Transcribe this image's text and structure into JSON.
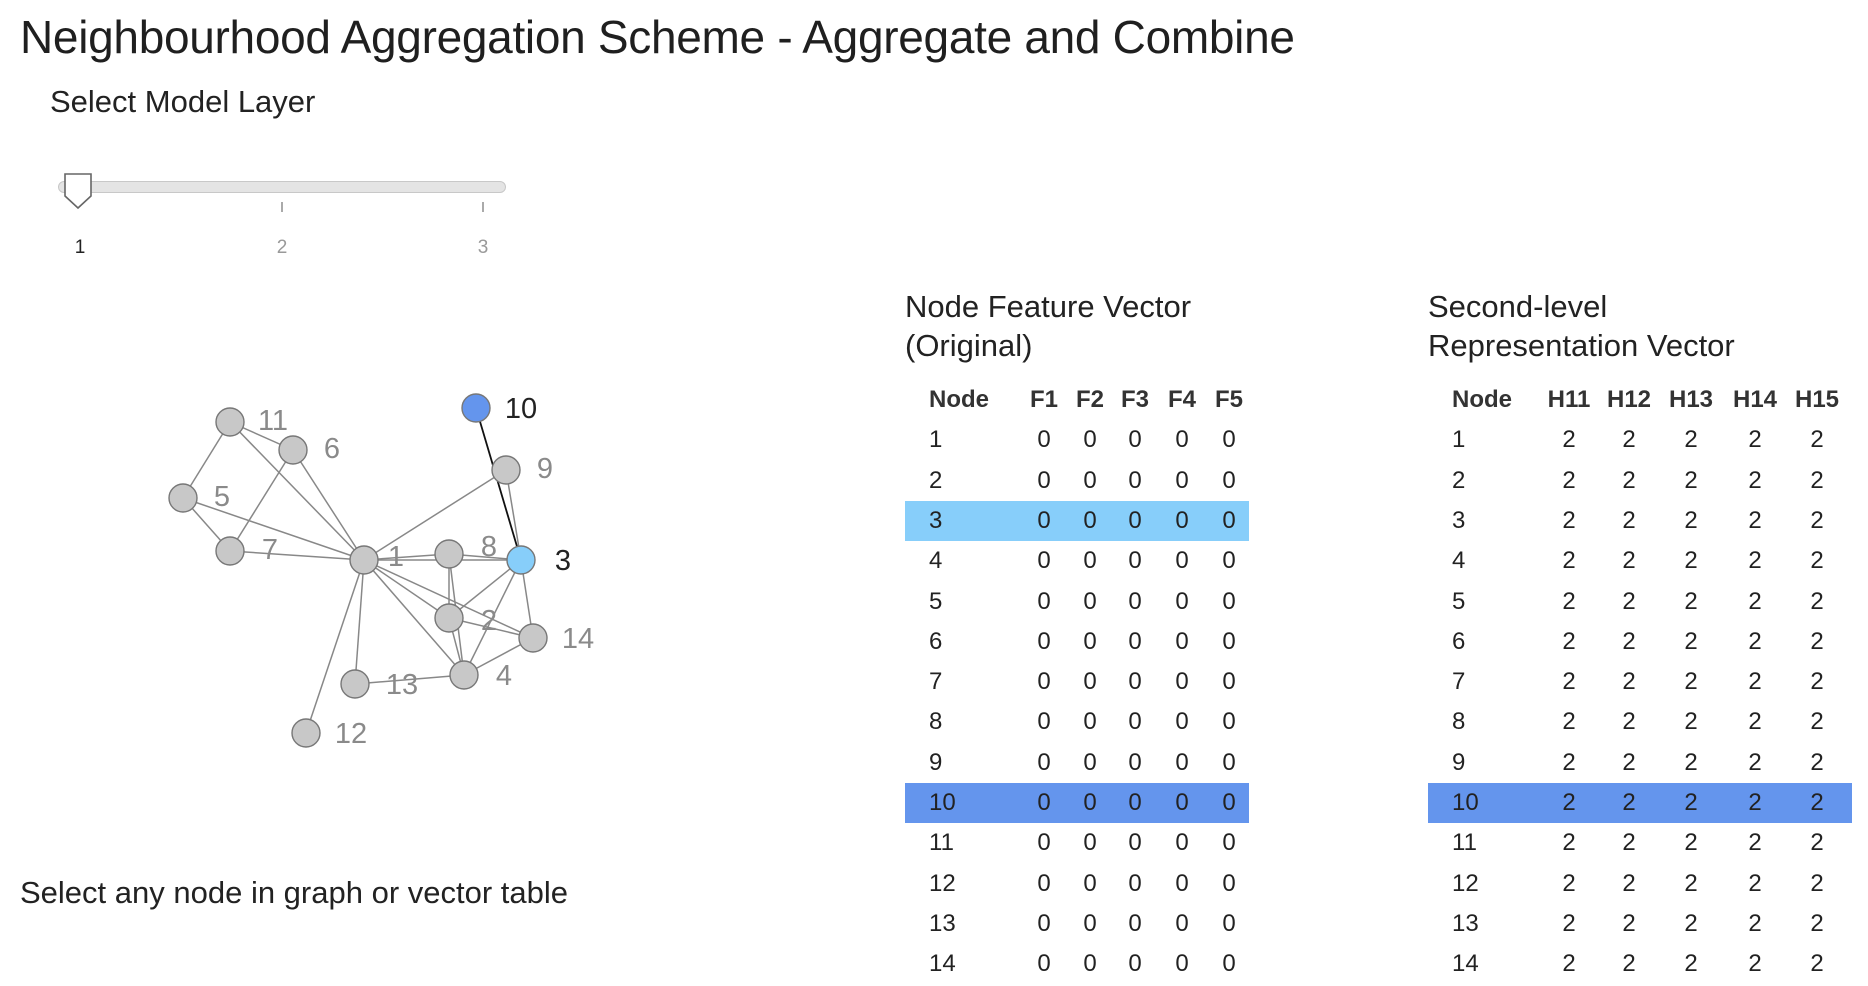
{
  "page": {
    "title": "Neighbourhood Aggregation Scheme - Aggregate and Combine",
    "hint": "Select any node in graph or vector table"
  },
  "slider": {
    "label": "Select Model Layer",
    "ticks": [
      "1",
      "2",
      "3"
    ],
    "value": 1
  },
  "colors": {
    "node_default": "#c8c8c8",
    "node_selected": "#6495ed",
    "node_neighbor": "#87cefa",
    "edge": "#888888",
    "edge_selected": "#111111"
  },
  "graph": {
    "selected_node": "10",
    "neighbor_nodes": [
      "3"
    ],
    "nodes": [
      "1",
      "2",
      "3",
      "4",
      "5",
      "6",
      "7",
      "8",
      "9",
      "10",
      "11",
      "12",
      "13",
      "14"
    ],
    "edges": [
      [
        "11",
        "6"
      ],
      [
        "11",
        "5"
      ],
      [
        "11",
        "1"
      ],
      [
        "6",
        "7"
      ],
      [
        "6",
        "1"
      ],
      [
        "5",
        "7"
      ],
      [
        "5",
        "1"
      ],
      [
        "7",
        "1"
      ],
      [
        "9",
        "1"
      ],
      [
        "9",
        "3"
      ],
      [
        "10",
        "3"
      ],
      [
        "1",
        "8"
      ],
      [
        "1",
        "3"
      ],
      [
        "1",
        "2"
      ],
      [
        "1",
        "4"
      ],
      [
        "1",
        "14"
      ],
      [
        "1",
        "13"
      ],
      [
        "1",
        "12"
      ],
      [
        "8",
        "3"
      ],
      [
        "8",
        "2"
      ],
      [
        "8",
        "4"
      ],
      [
        "3",
        "2"
      ],
      [
        "3",
        "4"
      ],
      [
        "3",
        "14"
      ],
      [
        "2",
        "4"
      ],
      [
        "2",
        "14"
      ],
      [
        "4",
        "13"
      ],
      [
        "4",
        "14"
      ]
    ]
  },
  "original_table": {
    "title_line1": "Node Feature Vector",
    "title_line2": "(Original)",
    "columns": [
      "Node",
      "F1",
      "F2",
      "F3",
      "F4",
      "F5"
    ],
    "rows": [
      [
        "1",
        "0",
        "0",
        "0",
        "0",
        "0"
      ],
      [
        "2",
        "0",
        "0",
        "0",
        "0",
        "0"
      ],
      [
        "3",
        "0",
        "0",
        "0",
        "0",
        "0"
      ],
      [
        "4",
        "0",
        "0",
        "0",
        "0",
        "0"
      ],
      [
        "5",
        "0",
        "0",
        "0",
        "0",
        "0"
      ],
      [
        "6",
        "0",
        "0",
        "0",
        "0",
        "0"
      ],
      [
        "7",
        "0",
        "0",
        "0",
        "0",
        "0"
      ],
      [
        "8",
        "0",
        "0",
        "0",
        "0",
        "0"
      ],
      [
        "9",
        "0",
        "0",
        "0",
        "0",
        "0"
      ],
      [
        "10",
        "0",
        "0",
        "0",
        "0",
        "0"
      ],
      [
        "11",
        "0",
        "0",
        "0",
        "0",
        "0"
      ],
      [
        "12",
        "0",
        "0",
        "0",
        "0",
        "0"
      ],
      [
        "13",
        "0",
        "0",
        "0",
        "0",
        "0"
      ],
      [
        "14",
        "0",
        "0",
        "0",
        "0",
        "0"
      ]
    ]
  },
  "representation_table": {
    "title_line1": "Second-level",
    "title_line2": "Representation Vector",
    "columns": [
      "Node",
      "H11",
      "H12",
      "H13",
      "H14",
      "H15"
    ],
    "rows": [
      [
        "1",
        "2",
        "2",
        "2",
        "2",
        "2"
      ],
      [
        "2",
        "2",
        "2",
        "2",
        "2",
        "2"
      ],
      [
        "3",
        "2",
        "2",
        "2",
        "2",
        "2"
      ],
      [
        "4",
        "2",
        "2",
        "2",
        "2",
        "2"
      ],
      [
        "5",
        "2",
        "2",
        "2",
        "2",
        "2"
      ],
      [
        "6",
        "2",
        "2",
        "2",
        "2",
        "2"
      ],
      [
        "7",
        "2",
        "2",
        "2",
        "2",
        "2"
      ],
      [
        "8",
        "2",
        "2",
        "2",
        "2",
        "2"
      ],
      [
        "9",
        "2",
        "2",
        "2",
        "2",
        "2"
      ],
      [
        "10",
        "2",
        "2",
        "2",
        "2",
        "2"
      ],
      [
        "11",
        "2",
        "2",
        "2",
        "2",
        "2"
      ],
      [
        "12",
        "2",
        "2",
        "2",
        "2",
        "2"
      ],
      [
        "13",
        "2",
        "2",
        "2",
        "2",
        "2"
      ],
      [
        "14",
        "2",
        "2",
        "2",
        "2",
        "2"
      ]
    ]
  }
}
